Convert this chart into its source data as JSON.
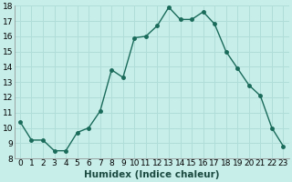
{
  "x": [
    0,
    1,
    2,
    3,
    4,
    5,
    6,
    7,
    8,
    9,
    10,
    11,
    12,
    13,
    14,
    15,
    16,
    17,
    18,
    19,
    20,
    21,
    22,
    23
  ],
  "y": [
    10.4,
    9.2,
    9.2,
    8.5,
    8.5,
    9.7,
    10.0,
    11.1,
    13.8,
    13.3,
    15.9,
    16.0,
    16.7,
    17.9,
    17.1,
    17.1,
    17.6,
    16.8,
    15.0,
    13.9,
    12.8,
    12.1,
    10.0,
    8.8
  ],
  "line_color": "#1a6b5a",
  "marker": "o",
  "marker_size": 2.5,
  "linewidth": 1.0,
  "xlabel": "Humidex (Indice chaleur)",
  "ylabel": "",
  "ylim": [
    8,
    18
  ],
  "xlim": [
    -0.5,
    23.5
  ],
  "yticks": [
    8,
    9,
    10,
    11,
    12,
    13,
    14,
    15,
    16,
    17,
    18
  ],
  "xticks": [
    0,
    1,
    2,
    3,
    4,
    5,
    6,
    7,
    8,
    9,
    10,
    11,
    12,
    13,
    14,
    15,
    16,
    17,
    18,
    19,
    20,
    21,
    22,
    23
  ],
  "xtick_labels": [
    "0",
    "1",
    "2",
    "3",
    "4",
    "5",
    "6",
    "7",
    "8",
    "9",
    "10",
    "11",
    "12",
    "13",
    "14",
    "15",
    "16",
    "17",
    "18",
    "19",
    "20",
    "21",
    "22",
    "23"
  ],
  "background_color": "#c8eeea",
  "grid_color": "#b0ddd8",
  "tick_fontsize": 6.5,
  "xlabel_fontsize": 7.5
}
